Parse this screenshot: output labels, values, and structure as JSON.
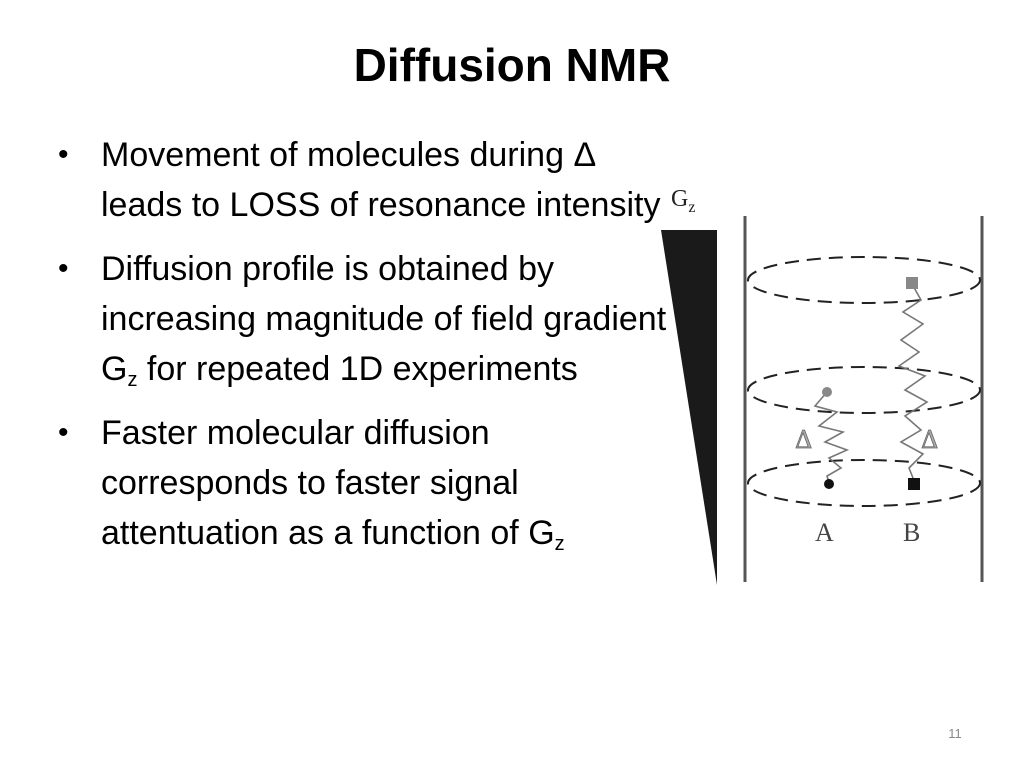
{
  "slide": {
    "title": "Diffusion NMR",
    "page_number": "11",
    "bullets": [
      {
        "bullet_glyph": "•",
        "text": "Movement of molecules during Δ leads to LOSS of resonance intensity"
      },
      {
        "bullet_glyph": "•",
        "text_before": "Diffusion profile is obtained by increasing magnitude of field gradient G",
        "sub": "z",
        "text_after": " for repeated 1D experiments"
      },
      {
        "bullet_glyph": "•",
        "text_before": "Faster molecular diffusion corresponds to faster signal attentuation as a function of G",
        "sub": "z"
      }
    ]
  },
  "diagram": {
    "gradient_label_main": "G",
    "gradient_label_sub": "z",
    "delta_left": "Δ",
    "delta_right": "Δ",
    "molecule_a_label": "A",
    "molecule_b_label": "B",
    "colors": {
      "wedge": "#1a1a1a",
      "walls": "#555555",
      "dashed": "#222222",
      "path": "#777777",
      "marker_gray": "#888888",
      "marker_dark": "#111111"
    }
  }
}
